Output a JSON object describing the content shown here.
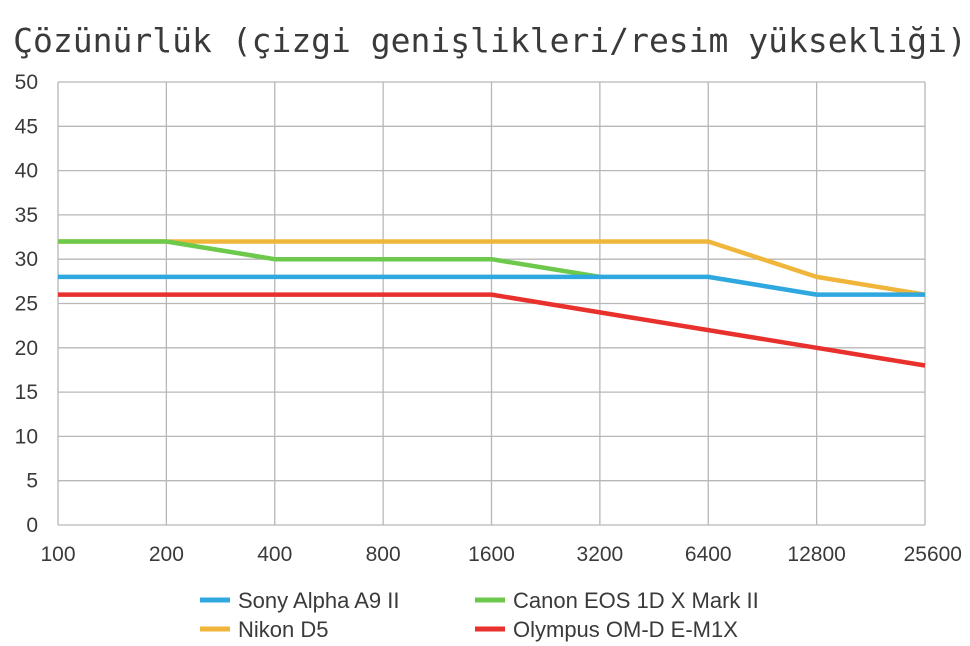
{
  "chart_data": {
    "type": "line",
    "title": "Çözünürlük (çizgi genişlikleri/resim yüksekliği)",
    "categories": [
      "100",
      "200",
      "400",
      "800",
      "1600",
      "3200",
      "6400",
      "12800",
      "25600"
    ],
    "ylim": [
      0,
      50
    ],
    "yticks": [
      0,
      5,
      10,
      15,
      20,
      25,
      30,
      35,
      40,
      45,
      50
    ],
    "grid": true,
    "legend_position": "bottom",
    "series": [
      {
        "name": "Nikon D5",
        "color": "#f0b63c",
        "values": [
          32,
          32,
          32,
          32,
          32,
          32,
          32,
          28,
          26
        ]
      },
      {
        "name": "Canon EOS 1D X Mark II",
        "color": "#6cc94c",
        "values": [
          32,
          32,
          30,
          30,
          30,
          28,
          null,
          null,
          null
        ]
      },
      {
        "name": "Sony Alpha A9 II",
        "color": "#2fa8e0",
        "values": [
          28,
          28,
          28,
          28,
          28,
          28,
          28,
          26,
          26
        ]
      },
      {
        "name": "Olympus OM-D E-M1X",
        "color": "#e8312c",
        "values": [
          26,
          26,
          26,
          26,
          26,
          24,
          22,
          20,
          18
        ]
      }
    ],
    "legend_order": [
      "Sony Alpha A9 II",
      "Canon EOS 1D X Mark II",
      "Nikon D5",
      "Olympus OM-D E-M1X"
    ]
  }
}
